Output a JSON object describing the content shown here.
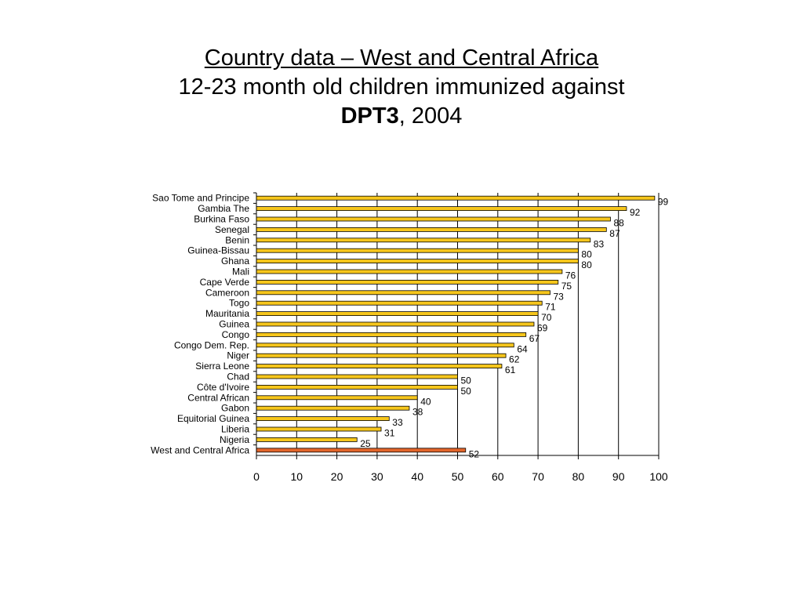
{
  "title": {
    "line1": "Country data – West and Central Africa",
    "line2": "12-23 month old children immunized against",
    "line3_bold": "DPT3",
    "line3_rest": ", 2004"
  },
  "colors": {
    "bar": "#f6c61c",
    "bar_highlight": "#e2652a",
    "bar_stroke": "#000000"
  },
  "chart_data": {
    "type": "bar",
    "orientation": "horizontal",
    "title": "Country data – West and Central Africa — 12-23 month old children immunized against DPT3, 2004",
    "xlabel": "",
    "ylabel": "",
    "xlim": [
      0,
      100
    ],
    "xticks": [
      0,
      10,
      20,
      30,
      40,
      50,
      60,
      70,
      80,
      90,
      100
    ],
    "grid": true,
    "legend": "none",
    "highlight_category": "West and Central Africa",
    "categories": [
      "Sao Tome and Principe",
      "Gambia The",
      "Burkina Faso",
      "Senegal",
      "Benin",
      "Guinea-Bissau",
      "Ghana",
      "Mali",
      "Cape Verde",
      "Cameroon",
      "Togo",
      "Mauritania",
      "Guinea",
      "Congo",
      "Congo Dem. Rep.",
      "Niger",
      "Sierra Leone",
      "Chad",
      "Côte d'Ivoire",
      "Central African",
      "Gabon",
      "Equitorial Guinea",
      "Liberia",
      "Nigeria",
      "West and Central Africa"
    ],
    "values": [
      99,
      92,
      88,
      87,
      83,
      80,
      80,
      76,
      75,
      73,
      71,
      70,
      69,
      67,
      64,
      62,
      61,
      50,
      50,
      40,
      38,
      33,
      31,
      25,
      52
    ]
  }
}
